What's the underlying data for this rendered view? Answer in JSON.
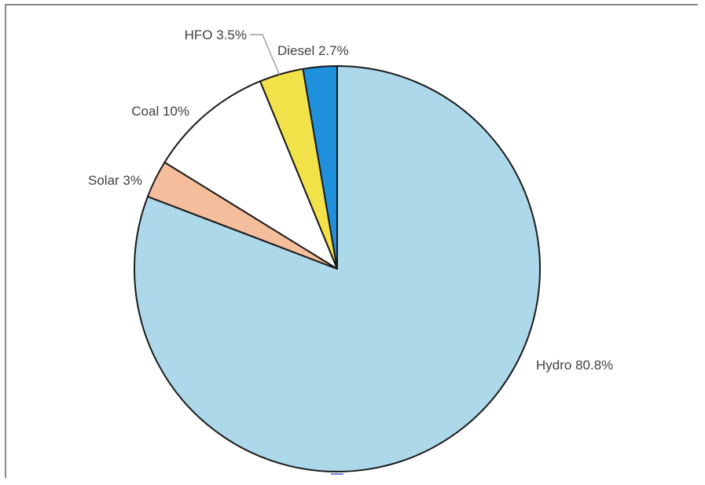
{
  "chart_data": {
    "type": "pie",
    "title": "",
    "start_angle_deg": 0,
    "direction": "clockwise",
    "slices": [
      {
        "label": "Hydro",
        "value": 80.8,
        "display": "Hydro 80.8%",
        "color": "#ADD8EA"
      },
      {
        "label": "Solar",
        "value": 3,
        "display": "Solar 3%",
        "color": "#F4BE9C"
      },
      {
        "label": "Coal",
        "value": 10,
        "display": "Coal 10%",
        "color": "#FFFFFF"
      },
      {
        "label": "HFO",
        "value": 3.5,
        "display": "HFO 3.5%",
        "color": "#F2E24A"
      },
      {
        "label": "Diesel",
        "value": 2.7,
        "display": "Diesel 2.7%",
        "color": "#1E90DC"
      }
    ],
    "frame_color": "#404040",
    "outline_color": "#1a1a1a"
  }
}
